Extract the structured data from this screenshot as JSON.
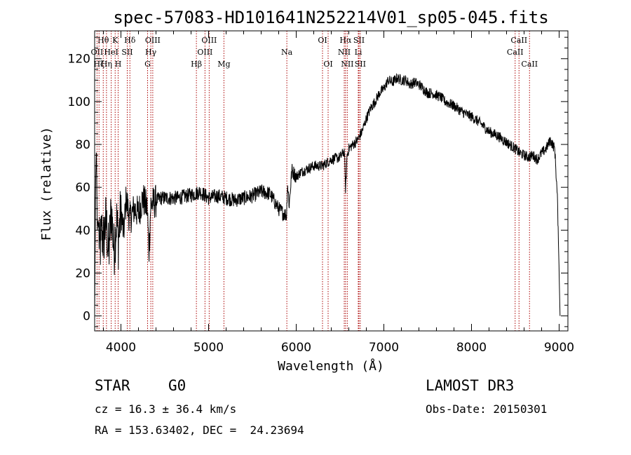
{
  "chart_data": {
    "type": "line",
    "title": "spec-57083-HD101641N252214V01_sp05-045.fits",
    "xlabel": "Wavelength (Å)",
    "ylabel": "Flux (relative)",
    "xlim": [
      3700,
      9100
    ],
    "ylim": [
      -7,
      133
    ],
    "xticks": [
      4000,
      5000,
      6000,
      7000,
      8000,
      9000
    ],
    "yticks": [
      0,
      20,
      40,
      60,
      80,
      100,
      120
    ],
    "grid": false,
    "line_color": "#000000",
    "marker_color": "#aa0000",
    "spectrum": {
      "x": [
        3700,
        3710,
        3720,
        3730,
        3740,
        3760,
        3780,
        3800,
        3830,
        3860,
        3890,
        3920,
        3950,
        3970,
        4000,
        4030,
        4060,
        4100,
        4150,
        4200,
        4250,
        4300,
        4320,
        4340,
        4380,
        4450,
        4550,
        4650,
        4750,
        4850,
        4900,
        5000,
        5100,
        5200,
        5300,
        5400,
        5500,
        5600,
        5700,
        5800,
        5850,
        5890,
        5900,
        5920,
        5950,
        6000,
        6050,
        6100,
        6200,
        6300,
        6400,
        6500,
        6550,
        6563,
        6580,
        6600,
        6650,
        6700,
        6750,
        6800,
        6850,
        6900,
        6950,
        7000,
        7050,
        7100,
        7150,
        7200,
        7250,
        7300,
        7350,
        7400,
        7450,
        7500,
        7550,
        7600,
        7650,
        7700,
        7800,
        7900,
        8000,
        8100,
        8200,
        8300,
        8400,
        8500,
        8550,
        8600,
        8650,
        8700,
        8750,
        8800,
        8850,
        8900,
        8950,
        8980,
        9000,
        9010
      ],
      "y": [
        0,
        60,
        80,
        40,
        45,
        30,
        40,
        35,
        45,
        28,
        50,
        30,
        45,
        35,
        50,
        38,
        55,
        45,
        50,
        48,
        55,
        50,
        30,
        52,
        53,
        55,
        55,
        55,
        56,
        57,
        58,
        55,
        56,
        55,
        54,
        55,
        56,
        58,
        57,
        50,
        48,
        47,
        62,
        52,
        68,
        65,
        67,
        68,
        70,
        70,
        73,
        74,
        77,
        58,
        75,
        78,
        80,
        82,
        86,
        92,
        97,
        100,
        104,
        106,
        110,
        109,
        111,
        110,
        110,
        108,
        109,
        108,
        106,
        104,
        104,
        103,
        102,
        100,
        98,
        95,
        93,
        90,
        86,
        84,
        81,
        78,
        76,
        75,
        74,
        75,
        73,
        76,
        78,
        82,
        78,
        55,
        20,
        0
      ]
    },
    "line_markers": [
      {
        "label": "Hθ",
        "x": 3798,
        "row": 1
      },
      {
        "label": "OII",
        "x": 3727,
        "row": 2
      },
      {
        "label": "Hζ",
        "x": 3750,
        "row": 3
      },
      {
        "label": "K",
        "x": 3934,
        "row": 1
      },
      {
        "label": "HeI",
        "x": 3889,
        "row": 2
      },
      {
        "label": "Hη",
        "x": 3835,
        "row": 3
      },
      {
        "label": "Hδ",
        "x": 4102,
        "row": 1
      },
      {
        "label": "SII",
        "x": 4072,
        "row": 2
      },
      {
        "label": "H",
        "x": 3968,
        "row": 3
      },
      {
        "label": "OIII",
        "x": 4363,
        "row": 1
      },
      {
        "label": "Hγ",
        "x": 4341,
        "row": 2
      },
      {
        "label": "G",
        "x": 4304,
        "row": 3
      },
      {
        "label": "OIII",
        "x": 5007,
        "row": 1
      },
      {
        "label": "OIII",
        "x": 4959,
        "row": 2
      },
      {
        "label": "Hβ",
        "x": 4861,
        "row": 3
      },
      {
        "label": "Mg",
        "x": 5175,
        "row": 3
      },
      {
        "label": "Na",
        "x": 5893,
        "row": 2
      },
      {
        "label": "OI",
        "x": 6300,
        "row": 1
      },
      {
        "label": "OI",
        "x": 6364,
        "row": 3
      },
      {
        "label": "Hα",
        "x": 6563,
        "row": 1
      },
      {
        "label": "NII",
        "x": 6548,
        "row": 2
      },
      {
        "label": "NII",
        "x": 6583,
        "row": 3
      },
      {
        "label": "SII",
        "x": 6716,
        "row": 1
      },
      {
        "label": "Li",
        "x": 6708,
        "row": 2
      },
      {
        "label": "SII",
        "x": 6731,
        "row": 3
      },
      {
        "label": "CaII",
        "x": 8542,
        "row": 1
      },
      {
        "label": "CaII",
        "x": 8498,
        "row": 2
      },
      {
        "label": "CaII",
        "x": 8662,
        "row": 3
      }
    ]
  },
  "info": {
    "object_type": "STAR",
    "subclass": "G0",
    "survey": "LAMOST DR3",
    "cz": "cz = 16.3 ± 36.4 km/s",
    "obs_date": "Obs-Date: 20150301",
    "coords": "RA = 153.63402, DEC =  24.23694"
  }
}
